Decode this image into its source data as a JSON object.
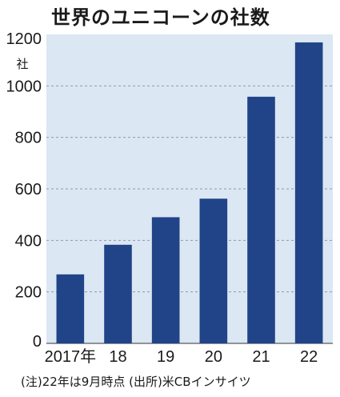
{
  "chart_data": {
    "type": "bar",
    "title": "世界のユニコーンの社数",
    "ylabel": "社",
    "xlabel": "",
    "categories": [
      "2017年",
      "18",
      "19",
      "20",
      "21",
      "22"
    ],
    "values": [
      268,
      383,
      490,
      562,
      958,
      1169
    ],
    "ylim": [
      0,
      1200
    ],
    "yticks": [
      0,
      200,
      400,
      600,
      800,
      1000,
      1200
    ],
    "grid": true,
    "note": "(注)22年は9月時点 (出所)米CBインサイツ",
    "colors": {
      "plot_background": "#dbe7f3",
      "bar": "#214488",
      "grid": "#8a9bb0"
    }
  }
}
